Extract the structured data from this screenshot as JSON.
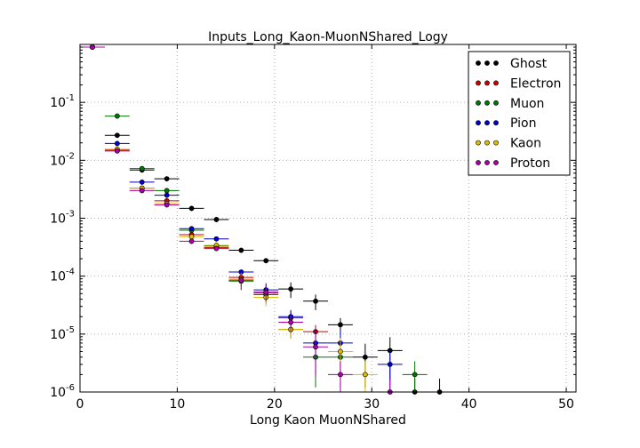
{
  "chart_data": {
    "type": "scatter",
    "title": "Inputs_Long_Kaon-MuonNShared_Logy",
    "xlabel": "Long Kaon MuonNShared",
    "ylabel": "",
    "xlim": [
      0,
      51
    ],
    "ylim": [
      1e-06,
      1
    ],
    "yscale": "log",
    "grid": true,
    "legend_position": "top-right",
    "x_ticks": [
      "0",
      "10",
      "20",
      "30",
      "40",
      "50"
    ],
    "y_ticks": [
      {
        "base": "10",
        "exp": "-6"
      },
      {
        "base": "10",
        "exp": "-5"
      },
      {
        "base": "10",
        "exp": "-4"
      },
      {
        "base": "10",
        "exp": "-3"
      },
      {
        "base": "10",
        "exp": "-2"
      },
      {
        "base": "10",
        "exp": "-1"
      }
    ],
    "bin_width": 2.55,
    "series": [
      {
        "name": "Ghost",
        "color": "#000000",
        "x": [
          1.275,
          3.825,
          6.375,
          8.925,
          11.475,
          14.025,
          16.575,
          19.125,
          21.675,
          24.225,
          26.775,
          29.325,
          31.875,
          34.425,
          36.975
        ],
        "y": [
          0.9,
          0.027,
          0.0068,
          0.0048,
          0.00148,
          0.00095,
          0.00028,
          0.000185,
          6e-05,
          3.7e-05,
          1.45e-05,
          4e-06,
          5.2e-06,
          1e-06,
          1e-06
        ]
      },
      {
        "name": "Electron",
        "color": "#cc0000",
        "x": [
          1.275,
          3.825,
          6.375,
          8.925,
          11.475,
          14.025,
          16.575,
          19.125,
          21.675,
          24.225
        ],
        "y": [
          0.9,
          0.015,
          0.0033,
          0.002,
          0.00052,
          0.00031,
          9.5e-05,
          5.1e-05,
          1.9e-05,
          1.1e-05
        ]
      },
      {
        "name": "Muon",
        "color": "#007700",
        "x": [
          1.275,
          3.825,
          6.375,
          8.925,
          11.475,
          14.025,
          16.575,
          19.125,
          21.675,
          24.225,
          26.775,
          34.425
        ],
        "y": [
          0.9,
          0.058,
          0.0072,
          0.003,
          0.00062,
          0.00033,
          8.2e-05,
          4.8e-05,
          1.2e-05,
          4e-06,
          4e-06,
          2e-06
        ]
      },
      {
        "name": "Pion",
        "color": "#0000cc",
        "x": [
          1.275,
          3.825,
          6.375,
          8.925,
          11.475,
          14.025,
          16.575,
          19.125,
          21.675,
          24.225,
          26.775,
          31.875
        ],
        "y": [
          0.9,
          0.0195,
          0.0042,
          0.0025,
          0.00066,
          0.00044,
          0.000118,
          5.8e-05,
          2e-05,
          7e-06,
          7e-06,
          3e-06
        ]
      },
      {
        "name": "Kaon",
        "color": "#ddbb00",
        "x": [
          1.275,
          3.825,
          6.375,
          8.925,
          11.475,
          14.025,
          16.575,
          19.125,
          21.675,
          26.775,
          29.325
        ],
        "y": [
          0.9,
          0.0155,
          0.0033,
          0.0018,
          0.00048,
          0.00034,
          8.8e-05,
          4.3e-05,
          1.2e-05,
          5e-06,
          2e-06
        ]
      },
      {
        "name": "Proton",
        "color": "#aa00aa",
        "x": [
          1.275,
          3.825,
          6.375,
          8.925,
          11.475,
          14.025,
          16.575,
          19.125,
          21.675,
          24.225,
          26.775,
          31.875
        ],
        "y": [
          0.9,
          0.0145,
          0.003,
          0.0017,
          0.0004,
          0.0003,
          8.5e-05,
          5.3e-05,
          1.6e-05,
          6e-06,
          2e-06,
          1e-06
        ]
      }
    ]
  }
}
